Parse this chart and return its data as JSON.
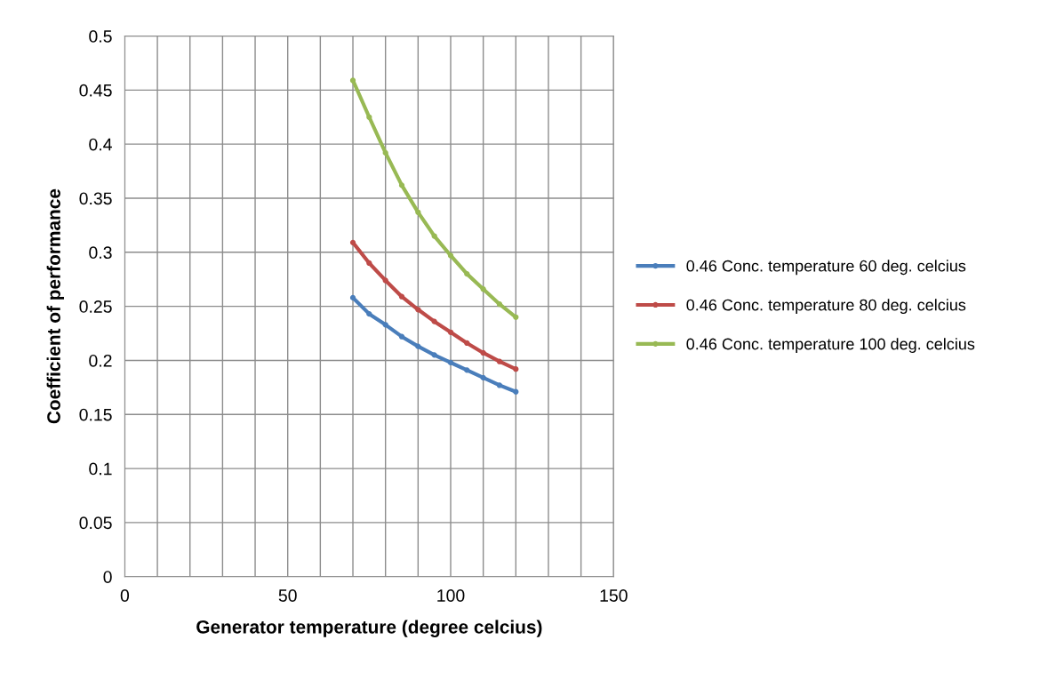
{
  "chart_data": {
    "type": "line",
    "xlabel": "Generator temperature (degree celcius)",
    "ylabel": "Coefficient of performance",
    "x": [
      70,
      75,
      80,
      85,
      90,
      95,
      100,
      105,
      110,
      115,
      120
    ],
    "series": [
      {
        "name": "0.46 Conc. temperature 60 deg. celcius",
        "color": "#4a7ebb",
        "values": [
          0.258,
          0.243,
          0.233,
          0.222,
          0.213,
          0.205,
          0.198,
          0.191,
          0.184,
          0.177,
          0.171
        ]
      },
      {
        "name": "0.46 Conc. temperature 80 deg. celcius",
        "color": "#be4b48",
        "values": [
          0.309,
          0.29,
          0.274,
          0.259,
          0.247,
          0.236,
          0.226,
          0.216,
          0.207,
          0.199,
          0.192
        ]
      },
      {
        "name": "0.46 Conc. temperature 100 deg. celcius",
        "color": "#98b954",
        "values": [
          0.459,
          0.425,
          0.392,
          0.362,
          0.337,
          0.315,
          0.297,
          0.28,
          0.266,
          0.252,
          0.24
        ]
      }
    ],
    "xlim": [
      0,
      150
    ],
    "xticks": [
      0,
      {
        "value": 10,
        "label": null
      },
      {
        "value": 20,
        "label": null
      },
      {
        "value": 30,
        "label": null
      },
      {
        "value": 40,
        "label": null
      },
      50,
      {
        "value": 60,
        "label": null
      },
      {
        "value": 70,
        "label": null
      },
      {
        "value": 80,
        "label": null
      },
      {
        "value": 90,
        "label": null
      },
      100,
      {
        "value": 110,
        "label": null
      },
      {
        "value": 120,
        "label": null
      },
      {
        "value": 130,
        "label": null
      },
      {
        "value": 140,
        "label": null
      },
      150
    ],
    "ylim": [
      0,
      0.5
    ],
    "yticks": [
      0,
      0.05,
      0.1,
      0.15,
      0.2,
      0.25,
      0.3,
      0.35,
      0.4,
      0.45,
      0.5
    ],
    "grid": true,
    "legend": "right",
    "marker": "circle",
    "line_style": "solid"
  }
}
